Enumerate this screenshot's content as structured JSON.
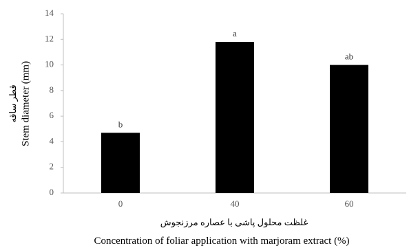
{
  "chart_data": {
    "type": "bar",
    "categories": [
      "0",
      "40",
      "60"
    ],
    "values": [
      4.7,
      11.8,
      10.0
    ],
    "significance_letters": [
      "b",
      "a",
      "ab"
    ],
    "ylim": [
      0,
      14
    ],
    "yticks": [
      0,
      2,
      4,
      6,
      8,
      10,
      12,
      14
    ],
    "ylabel": "Stem diameter (mm)",
    "ylabel_fa": "قطر ساقه",
    "xlabel": "Concentration of foliar application with marjoram extract (%)",
    "xlabel_fa": "غلظت محلول پاشی با عصاره مرزنجوش",
    "grid": false,
    "legend": "none",
    "colors": {
      "bar": "#000000",
      "axis": "#bfbfbf",
      "tick_text": "#555555"
    }
  }
}
